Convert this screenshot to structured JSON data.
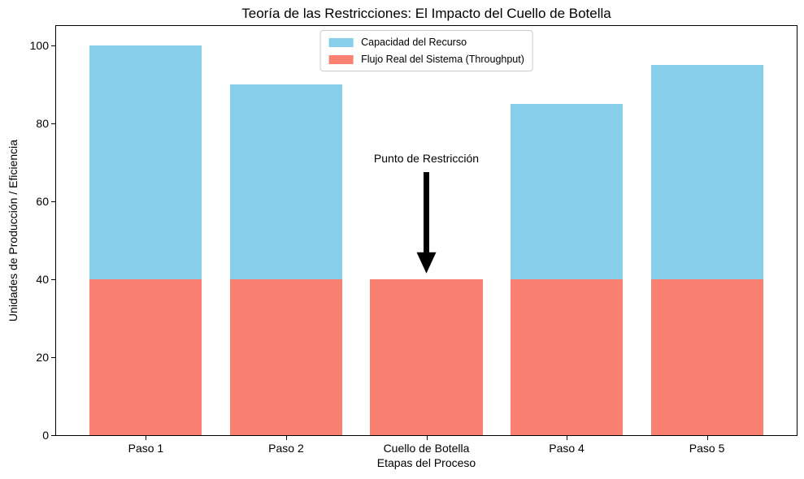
{
  "figure": {
    "background": "#ffffff",
    "axis_color": "#000000"
  },
  "chart_data": {
    "type": "bar",
    "title": "Teoría de las Restricciones: El Impacto del Cuello de Botella",
    "xlabel": "Etapas del Proceso",
    "ylabel": "Unidades de Producción / Eficiencia",
    "categories": [
      "Paso 1",
      "Paso 2",
      "Cuello de Botella",
      "Paso 4",
      "Paso 5"
    ],
    "series": [
      {
        "name": "Capacidad del Recurso",
        "color": "#87CEEB",
        "values": [
          100,
          90,
          40,
          85,
          95
        ]
      },
      {
        "name": "Flujo Real del Sistema (Throughput)",
        "color": "#FA8072",
        "values": [
          40,
          40,
          40,
          40,
          40
        ]
      }
    ],
    "ylim": [
      0,
      105
    ],
    "yticks": [
      0,
      20,
      40,
      60,
      80,
      100
    ],
    "bar_width_ratio": 0.8,
    "x_margin": 0.64,
    "grid": false,
    "legend_position": "upper center",
    "annotation": {
      "text": "Punto de Restricción",
      "category_index": 2,
      "arrow_tip_value": 41.5,
      "arrow_start_value": 67.5,
      "color": "#000000"
    }
  }
}
